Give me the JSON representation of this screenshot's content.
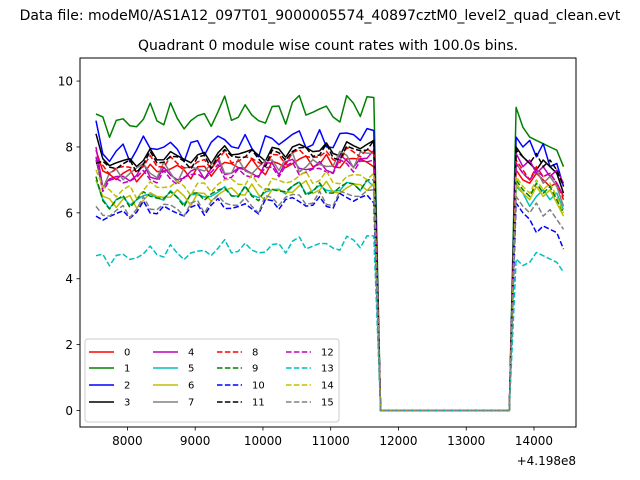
{
  "suptitle": "Data file: modeM0/AS1A12_097T01_9000005574_40897cztM0_level2_quad_clean.evt",
  "chart_data": {
    "type": "line",
    "title": "Quadrant 0 module wise count rates with 100.0s bins.",
    "xlabel": "",
    "ylabel": "",
    "offset_text": "+4.198e8",
    "xlim": [
      7300,
      14620
    ],
    "ylim": [
      -0.5,
      10.7
    ],
    "xticks": [
      8000,
      9000,
      10000,
      11000,
      12000,
      13000,
      14000
    ],
    "xtick_labels": [
      "8000",
      "9000",
      "10000",
      "11000",
      "12000",
      "13000",
      "14000"
    ],
    "yticks": [
      0,
      2,
      4,
      6,
      8,
      10
    ],
    "ytick_labels": [
      "0",
      "2",
      "4",
      "6",
      "8",
      "10"
    ],
    "grid": false,
    "legend": {
      "placement": "lower left",
      "columns": 4
    },
    "segments": [
      {
        "x_start": 7536,
        "x_end": 11636,
        "step": 100
      },
      {
        "x_start": 11736,
        "x_end": 13636,
        "step": 100
      },
      {
        "x_start": 13736,
        "x_end": 14436,
        "step": 100
      }
    ],
    "series": [
      {
        "name": "0",
        "color": "#ff0000",
        "dash": "solid",
        "level": 7.4,
        "amp": 0.3,
        "phase": 0.3,
        "start": 7.9,
        "last": 7.4,
        "late": [
          7.3,
          7.0,
          6.9,
          7.2,
          7.0,
          6.8,
          6.9,
          6.5
        ]
      },
      {
        "name": "1",
        "color": "#008000",
        "dash": "solid",
        "level": 9.0,
        "amp": 0.55,
        "phase": 1.1,
        "start": 9.0,
        "last": 9.5,
        "late": [
          9.2,
          8.6,
          8.3,
          8.2,
          8.1,
          8.0,
          7.9,
          7.4
        ]
      },
      {
        "name": "2",
        "color": "#0000ff",
        "dash": "solid",
        "level": 8.1,
        "amp": 0.45,
        "phase": 2.0,
        "start": 8.8,
        "last": 8.5,
        "late": [
          8.3,
          8.0,
          8.2,
          7.7,
          8.1,
          7.4,
          7.5,
          6.8
        ]
      },
      {
        "name": "3",
        "color": "#000000",
        "dash": "solid",
        "level": 7.8,
        "amp": 0.3,
        "phase": 0.7,
        "start": 8.4,
        "last": 8.2,
        "late": [
          8.0,
          7.7,
          7.5,
          7.3,
          7.6,
          7.4,
          7.2,
          6.6
        ]
      },
      {
        "name": "4",
        "color": "#bf00bf",
        "dash": "solid",
        "level": 7.3,
        "amp": 0.35,
        "phase": 2.6,
        "start": 8.0,
        "last": 7.9,
        "late": [
          7.8,
          7.4,
          7.6,
          7.2,
          7.4,
          7.1,
          7.3,
          6.9
        ]
      },
      {
        "name": "5",
        "color": "#00bfbf",
        "dash": "solid",
        "level": 6.6,
        "amp": 0.25,
        "phase": 1.5,
        "start": 7.0,
        "last": 6.8,
        "late": [
          6.8,
          6.6,
          6.2,
          6.5,
          6.7,
          6.4,
          6.6,
          6.1
        ]
      },
      {
        "name": "6",
        "color": "#bfbf00",
        "dash": "solid",
        "level": 6.6,
        "amp": 0.3,
        "phase": 0.1,
        "start": 7.0,
        "last": 6.9,
        "late": [
          6.9,
          6.6,
          6.4,
          6.8,
          6.5,
          6.7,
          6.3,
          5.9
        ]
      },
      {
        "name": "7",
        "color": "#808080",
        "dash": "solid",
        "level": 7.4,
        "amp": 0.4,
        "phase": 3.1,
        "start": 7.6,
        "last": 7.8,
        "late": [
          7.5,
          7.2,
          7.0,
          7.3,
          6.9,
          7.1,
          6.8,
          6.2
        ]
      },
      {
        "name": "8",
        "color": "#ff0000",
        "dash": "dashed",
        "level": 7.6,
        "amp": 0.3,
        "phase": 0.9,
        "start": 7.6,
        "last": 7.8,
        "late": [
          7.6,
          7.3,
          7.0,
          7.4,
          7.1,
          7.2,
          6.9,
          6.4
        ]
      },
      {
        "name": "9",
        "color": "#008000",
        "dash": "dashed",
        "level": 6.6,
        "amp": 0.3,
        "phase": 1.8,
        "start": 7.1,
        "last": 7.0,
        "late": [
          7.0,
          6.7,
          6.5,
          6.9,
          6.6,
          6.8,
          6.4,
          6.0
        ]
      },
      {
        "name": "10",
        "color": "#0000ff",
        "dash": "dashed",
        "level": 6.2,
        "amp": 0.3,
        "phase": 2.4,
        "start": 5.9,
        "last": 6.3,
        "late": [
          6.3,
          6.0,
          5.8,
          5.4,
          5.6,
          5.5,
          5.4,
          4.9
        ]
      },
      {
        "name": "11",
        "color": "#000000",
        "dash": "dashed",
        "level": 7.7,
        "amp": 0.35,
        "phase": 0.5,
        "start": 7.5,
        "last": 8.2,
        "late": [
          7.9,
          7.7,
          7.5,
          7.8,
          7.4,
          7.6,
          7.3,
          6.8
        ]
      },
      {
        "name": "12",
        "color": "#bf00bf",
        "dash": "dashed",
        "level": 7.2,
        "amp": 0.3,
        "phase": 2.9,
        "start": 7.7,
        "last": 7.6,
        "late": [
          7.5,
          7.2,
          7.0,
          7.3,
          7.1,
          7.2,
          6.9,
          6.5
        ]
      },
      {
        "name": "13",
        "color": "#00bfbf",
        "dash": "dashed",
        "level": 4.9,
        "amp": 0.3,
        "phase": 1.2,
        "start": 4.7,
        "last": 5.3,
        "late": [
          4.6,
          4.4,
          4.5,
          4.8,
          4.7,
          4.6,
          4.5,
          4.2
        ]
      },
      {
        "name": "14",
        "color": "#bfbf00",
        "dash": "dashed",
        "level": 6.9,
        "amp": 0.3,
        "phase": 0.2,
        "start": 7.3,
        "last": 7.2,
        "late": [
          7.1,
          6.8,
          6.6,
          7.0,
          6.7,
          6.9,
          6.5,
          6.0
        ]
      },
      {
        "name": "15",
        "color": "#808080",
        "dash": "dashed",
        "level": 6.3,
        "amp": 0.35,
        "phase": 2.2,
        "start": 6.2,
        "last": 6.7,
        "late": [
          6.5,
          6.2,
          6.0,
          6.3,
          5.9,
          6.1,
          5.8,
          5.5
        ]
      }
    ]
  }
}
